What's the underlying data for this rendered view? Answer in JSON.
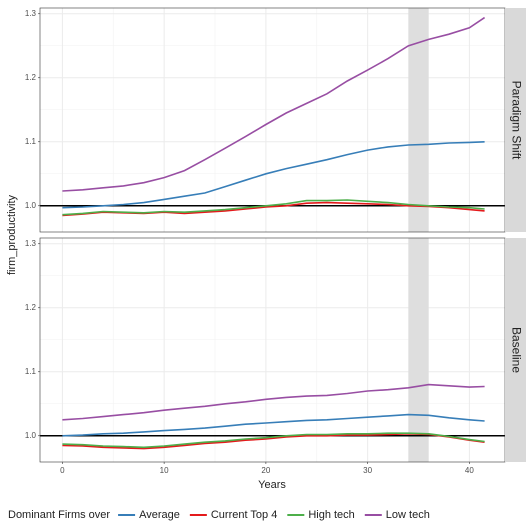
{
  "chart_data": {
    "type": "line",
    "x_label": "Years",
    "y_label": "firm_productivity",
    "legend_title": "Dominant Firms over",
    "x": [
      0,
      2,
      4,
      6,
      8,
      10,
      12,
      14,
      16,
      18,
      20,
      22,
      24,
      26,
      28,
      30,
      32,
      34,
      36,
      38,
      40,
      41.5
    ],
    "xlim": [
      -2.2,
      43.5
    ],
    "xticks": [
      0,
      10,
      20,
      30,
      40
    ],
    "ylim": [
      0.959,
      1.309
    ],
    "yticks": [
      {
        "value": 1,
        "label": "1.0"
      },
      1.1,
      1.2,
      1.3
    ],
    "hline": 1,
    "shaded": [
      34,
      36
    ],
    "grid": true,
    "legend": [
      {
        "name": "Average",
        "color": "#377eb8"
      },
      {
        "name": "Current Top 4",
        "color": "#e41a1c"
      },
      {
        "name": "High tech",
        "color": "#4daf4a"
      },
      {
        "name": "Low tech",
        "color": "#984ea3"
      }
    ],
    "facets": [
      {
        "label": "Paradigm Shift",
        "series": [
          {
            "values": [
              0.997,
              0.998,
              1.0,
              1.002,
              1.005,
              1.01,
              1.015,
              1.02,
              1.03,
              1.04,
              1.05,
              1.058,
              1.065,
              1.072,
              1.08,
              1.087,
              1.092,
              1.095,
              1.096,
              1.098,
              1.099,
              1.1
            ]
          },
          {
            "values": [
              0.985,
              0.987,
              0.99,
              0.989,
              0.988,
              0.99,
              0.988,
              0.99,
              0.992,
              0.995,
              0.998,
              1.0,
              1.004,
              1.005,
              1.004,
              1.003,
              1.002,
              1.0,
              0.999,
              0.997,
              0.994,
              0.992
            ]
          },
          {
            "values": [
              0.986,
              0.988,
              0.991,
              0.99,
              0.989,
              0.991,
              0.99,
              0.992,
              0.994,
              0.997,
              1.0,
              1.003,
              1.008,
              1.008,
              1.009,
              1.007,
              1.005,
              1.002,
              1.0,
              0.998,
              0.997,
              0.995
            ]
          },
          {
            "values": [
              1.023,
              1.025,
              1.028,
              1.031,
              1.036,
              1.044,
              1.055,
              1.072,
              1.09,
              1.108,
              1.127,
              1.145,
              1.16,
              1.175,
              1.195,
              1.212,
              1.23,
              1.25,
              1.26,
              1.268,
              1.278,
              1.294
            ]
          }
        ]
      },
      {
        "label": "Baseline",
        "series": [
          {
            "values": [
              1.0,
              1.001,
              1.003,
              1.004,
              1.006,
              1.008,
              1.01,
              1.012,
              1.015,
              1.018,
              1.02,
              1.022,
              1.024,
              1.025,
              1.027,
              1.029,
              1.031,
              1.033,
              1.032,
              1.028,
              1.025,
              1.023
            ]
          },
          {
            "values": [
              0.985,
              0.984,
              0.982,
              0.981,
              0.98,
              0.982,
              0.985,
              0.988,
              0.99,
              0.993,
              0.995,
              0.998,
              1.0,
              1.0,
              1.001,
              1.001,
              1.002,
              1.003,
              1.002,
              0.998,
              0.993,
              0.99
            ]
          },
          {
            "values": [
              0.987,
              0.986,
              0.984,
              0.983,
              0.982,
              0.984,
              0.987,
              0.99,
              0.992,
              0.995,
              0.997,
              1.0,
              1.002,
              1.002,
              1.003,
              1.003,
              1.004,
              1.004,
              1.003,
              0.999,
              0.994,
              0.991
            ]
          },
          {
            "values": [
              1.025,
              1.027,
              1.03,
              1.033,
              1.036,
              1.04,
              1.043,
              1.046,
              1.05,
              1.053,
              1.057,
              1.06,
              1.062,
              1.063,
              1.066,
              1.07,
              1.072,
              1.075,
              1.08,
              1.078,
              1.076,
              1.077
            ]
          }
        ]
      }
    ]
  }
}
